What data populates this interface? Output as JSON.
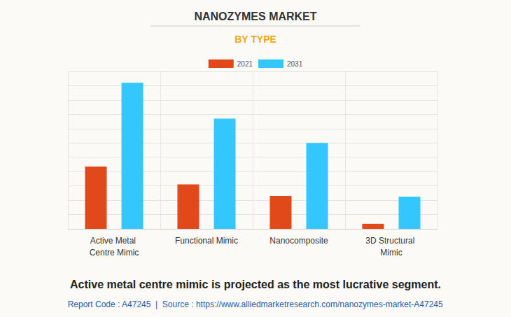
{
  "chart_data": {
    "type": "bar",
    "title": "NANOZYMES MARKET",
    "subtitle": "BY TYPE",
    "categories": [
      "Active Metal Centre Mimic",
      "Functional Mimic",
      "Nanocomposite",
      "3D Structural Mimic"
    ],
    "series": [
      {
        "name": "2021",
        "color": "#e2491a",
        "values": [
          4.35,
          3.1,
          2.3,
          0.35
        ]
      },
      {
        "name": "2031",
        "color": "#33c7fd",
        "values": [
          10.2,
          7.7,
          6.0,
          2.25
        ]
      }
    ],
    "ylim": [
      0,
      11
    ],
    "yticks": [
      0,
      1,
      2,
      3,
      4,
      5,
      6,
      7,
      8,
      9,
      10,
      11
    ],
    "grid": true,
    "tick_labels": "x",
    "legend": "top",
    "annotations": [
      "Active metal centre mimic is projected as the most lucrative segment.",
      "Report Code : A47245  |  Source : https://www.alliedmarketresearch.com/nanozymes-market-A47245"
    ]
  }
}
